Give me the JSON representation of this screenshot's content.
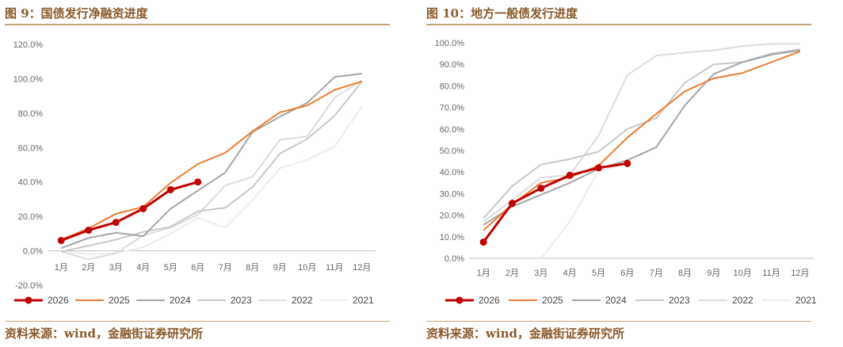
{
  "panels": [
    {
      "title": "图 9：国债发行净融资进度",
      "source": "资料来源：wind，金融街证券研究所"
    },
    {
      "title": "图 10：地方一般债发行进度",
      "source": "资料来源：wind，金融街证券研究所"
    }
  ],
  "chart_data": [
    {
      "type": "line",
      "categories": [
        "1月",
        "2月",
        "3月",
        "4月",
        "5月",
        "6月",
        "7月",
        "8月",
        "9月",
        "10月",
        "11月",
        "12月"
      ],
      "ylim": [
        -20,
        120
      ],
      "yticks": [
        "-20.0%",
        "0.0%",
        "20.0%",
        "40.0%",
        "60.0%",
        "80.0%",
        "100.0%",
        "120.0%"
      ],
      "ytick_values": [
        -20,
        0,
        20,
        40,
        60,
        80,
        100,
        120
      ],
      "grid": false,
      "legend_position": "bottom",
      "series": [
        {
          "name": "2026",
          "color": "#c00000",
          "values": [
            6,
            12,
            16.5,
            24.5,
            35.5,
            40,
            null,
            null,
            null,
            null,
            null,
            null
          ]
        },
        {
          "name": "2025",
          "color": "#ed7d31",
          "values": [
            6.5,
            13,
            21.5,
            25.5,
            39.5,
            50.5,
            57,
            69.5,
            80.5,
            84.5,
            93.5,
            98.5
          ]
        },
        {
          "name": "2024",
          "color": "#a5a5a5",
          "values": [
            1.5,
            7.5,
            10.5,
            8.5,
            24.5,
            35,
            45.5,
            69,
            78,
            86,
            101,
            103
          ]
        },
        {
          "name": "2023",
          "color": "#c8c8c8",
          "values": [
            -0.5,
            3,
            6.5,
            11,
            14,
            23,
            25,
            37,
            56.5,
            65,
            78.5,
            98.5
          ]
        },
        {
          "name": "2022",
          "color": "#dcdcdc",
          "values": [
            -0.5,
            -5,
            -1.5,
            9,
            13.5,
            21,
            38,
            43,
            64.5,
            66.5,
            89,
            99
          ]
        },
        {
          "name": "2021",
          "color": "#ececec",
          "values": [
            -0.5,
            -2,
            -1.5,
            2,
            10,
            19,
            13.5,
            29.5,
            48,
            53,
            60.5,
            84
          ]
        }
      ]
    },
    {
      "type": "line",
      "categories": [
        "1月",
        "2月",
        "3月",
        "4月",
        "5月",
        "6月",
        "7月",
        "8月",
        "9月",
        "10月",
        "11月",
        "12月"
      ],
      "ylim": [
        0,
        100
      ],
      "yticks": [
        "0.0%",
        "10.0%",
        "20.0%",
        "30.0%",
        "40.0%",
        "50.0%",
        "60.0%",
        "70.0%",
        "80.0%",
        "90.0%",
        "100.0%"
      ],
      "ytick_values": [
        0,
        10,
        20,
        30,
        40,
        50,
        60,
        70,
        80,
        90,
        100
      ],
      "grid": false,
      "legend_position": "bottom",
      "series": [
        {
          "name": "2026",
          "color": "#c00000",
          "values": [
            7.5,
            25.5,
            32.5,
            38.5,
            42,
            44,
            null,
            null,
            null,
            null,
            null,
            null
          ]
        },
        {
          "name": "2025",
          "color": "#ed7d31",
          "values": [
            13,
            25,
            35,
            37.5,
            43,
            56,
            67,
            77.5,
            83.5,
            86,
            91,
            96
          ]
        },
        {
          "name": "2024",
          "color": "#a5a5a5",
          "values": [
            15.5,
            24,
            29.5,
            35,
            41.5,
            45.5,
            51.5,
            71,
            85.5,
            91,
            94.5,
            96.5
          ]
        },
        {
          "name": "2023",
          "color": "#c8c8c8",
          "values": [
            18.5,
            33.5,
            43.5,
            46,
            49.5,
            60,
            65,
            81.5,
            90,
            91,
            95,
            97
          ]
        },
        {
          "name": "2022",
          "color": "#dcdcdc",
          "values": [
            17,
            27,
            37.5,
            38.5,
            57,
            85,
            94,
            95.5,
            96.5,
            98.5,
            99.5,
            99.5
          ]
        },
        {
          "name": "2021",
          "color": "#ececec",
          "values": [
            null,
            null,
            0,
            17,
            40.5,
            44,
            null,
            null,
            null,
            null,
            null,
            null
          ]
        }
      ]
    }
  ]
}
